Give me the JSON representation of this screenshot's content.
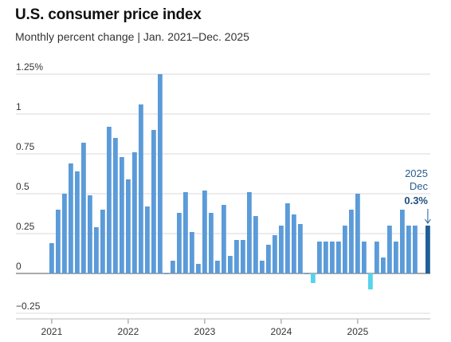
{
  "chart_data": {
    "type": "bar",
    "title": "U.S. consumer price index",
    "subtitle": "Monthly percent change | Jan. 2021–Dec. 2025",
    "ylim": [
      -0.25,
      1.25
    ],
    "yticks": [
      {
        "value": 1.25,
        "label": "1.25%"
      },
      {
        "value": 1,
        "label": "1"
      },
      {
        "value": 0.75,
        "label": "0.75"
      },
      {
        "value": 0.5,
        "label": "0.5"
      },
      {
        "value": 0.25,
        "label": "0.25"
      },
      {
        "value": 0,
        "label": "0"
      },
      {
        "value": -0.25,
        "label": "−0.25"
      }
    ],
    "xticks": [
      "2021",
      "2022",
      "2023",
      "2024",
      "2025"
    ],
    "values": [
      0.19,
      0.4,
      0.5,
      0.69,
      0.64,
      0.82,
      0.49,
      0.29,
      0.4,
      0.92,
      0.85,
      0.73,
      0.59,
      0.76,
      1.06,
      0.42,
      0.9,
      1.25,
      0.0,
      0.08,
      0.38,
      0.51,
      0.26,
      0.06,
      0.52,
      0.38,
      0.08,
      0.43,
      0.11,
      0.21,
      0.21,
      0.51,
      0.36,
      0.08,
      0.18,
      0.24,
      0.3,
      0.44,
      0.37,
      0.31,
      0.0,
      -0.06,
      0.2,
      0.2,
      0.2,
      0.2,
      0.3,
      0.4,
      0.5,
      0.2,
      -0.1,
      0.2,
      0.1,
      0.3,
      0.2,
      0.4,
      0.3,
      0.3,
      null,
      0.3
    ],
    "colors": {
      "positive": "#5b9bd9",
      "negative": "#56d3ec",
      "latest": "#1f5f99"
    },
    "callout": {
      "year": "2025",
      "month": "Dec",
      "value": "0.3%"
    }
  }
}
